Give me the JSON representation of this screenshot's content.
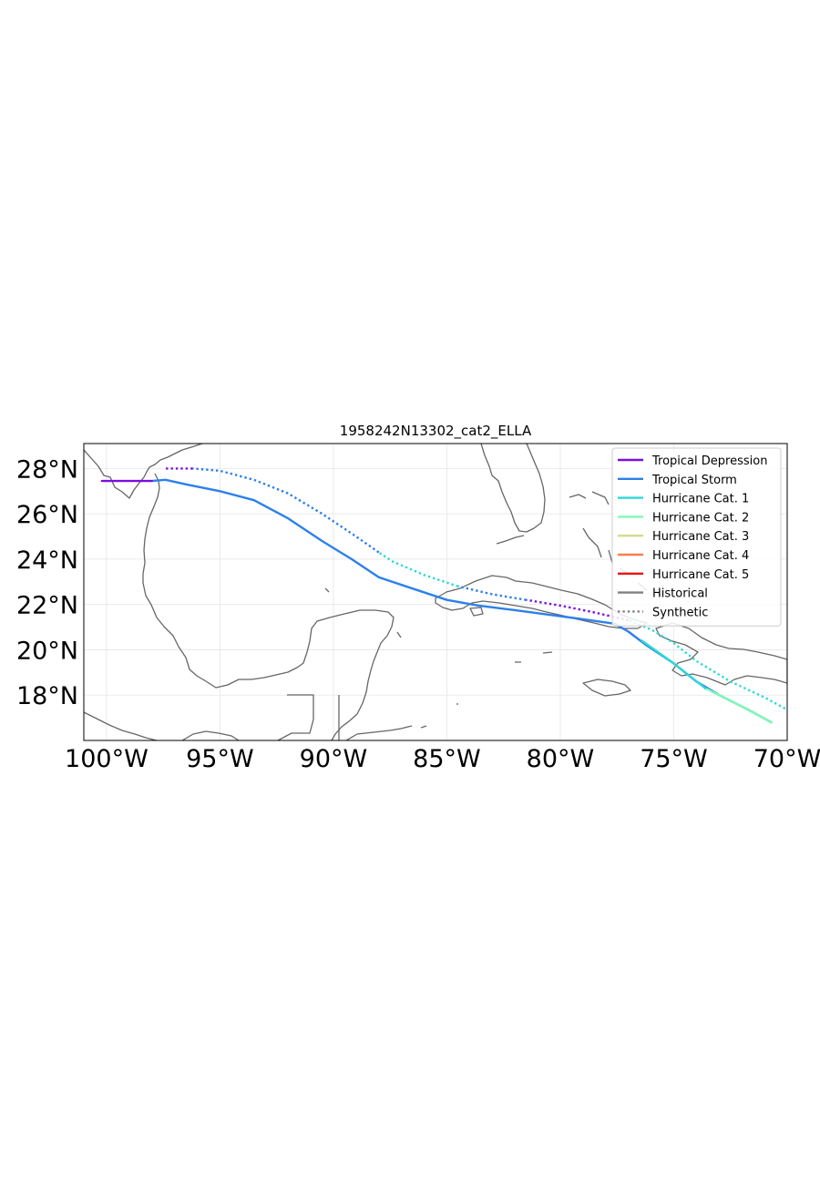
{
  "chart_data": {
    "type": "map",
    "title": "1958242N13302_cat2_ELLA",
    "xlim": [
      -101,
      -70.0
    ],
    "ylim": [
      16.0,
      29.1
    ],
    "grid": true,
    "legend_position": "top-right",
    "x_ticks": [
      {
        "value": -100,
        "label": "100°W"
      },
      {
        "value": -95,
        "label": "95°W"
      },
      {
        "value": -90,
        "label": "90°W"
      },
      {
        "value": -85,
        "label": "85°W"
      },
      {
        "value": -80,
        "label": "80°W"
      },
      {
        "value": -75,
        "label": "75°W"
      },
      {
        "value": -70,
        "label": "70°W"
      }
    ],
    "y_ticks": [
      {
        "value": 28,
        "label": "28°N"
      },
      {
        "value": 26,
        "label": "26°N"
      },
      {
        "value": 24,
        "label": "24°N"
      },
      {
        "value": 22,
        "label": "22°N"
      },
      {
        "value": 20,
        "label": "20°N"
      },
      {
        "value": 18,
        "label": "18°N"
      }
    ],
    "legend": [
      {
        "label": "Tropical Depression",
        "color": "#7a0fe0",
        "style": "solid"
      },
      {
        "label": "Tropical Storm",
        "color": "#2c80ea",
        "style": "solid"
      },
      {
        "label": "Hurricane Cat. 1",
        "color": "#2ed8d8",
        "style": "solid"
      },
      {
        "label": "Hurricane Cat. 2",
        "color": "#80f9b5",
        "style": "solid"
      },
      {
        "label": "Hurricane Cat. 3",
        "color": "#d4db8c",
        "style": "solid"
      },
      {
        "label": "Hurricane Cat. 4",
        "color": "#fb7e4b",
        "style": "solid"
      },
      {
        "label": "Hurricane Cat. 5",
        "color": "#e81515",
        "style": "solid"
      },
      {
        "label": "Historical",
        "color": "#808080",
        "style": "solid"
      },
      {
        "label": "Synthetic",
        "color": "#808080",
        "style": "dotted"
      }
    ],
    "series": [
      {
        "kind": "historical",
        "segments": [
          {
            "category": "Tropical Storm",
            "color": "#2c80ea",
            "points": [
              [
                -70.7,
                16.8
              ],
              [
                -71.8,
                17.4
              ],
              [
                -73.0,
                18.0
              ],
              [
                -74.0,
                18.6
              ],
              [
                -75.0,
                19.4
              ],
              [
                -76.2,
                20.2
              ],
              [
                -77.0,
                20.8
              ],
              [
                -77.6,
                21.15
              ]
            ]
          },
          {
            "category": "Tropical Storm",
            "color": "#2c80ea",
            "points": [
              [
                -77.6,
                21.15
              ],
              [
                -79.0,
                21.35
              ],
              [
                -80.5,
                21.55
              ],
              [
                -82.0,
                21.75
              ],
              [
                -83.6,
                21.95
              ],
              [
                -85.0,
                22.2
              ],
              [
                -86.5,
                22.7
              ],
              [
                -88.0,
                23.2
              ],
              [
                -89.2,
                24.0
              ],
              [
                -90.5,
                24.8
              ],
              [
                -92.0,
                25.8
              ],
              [
                -93.5,
                26.6
              ],
              [
                -95.0,
                27.0
              ],
              [
                -96.5,
                27.3
              ],
              [
                -97.4,
                27.5
              ],
              [
                -98.0,
                27.45
              ]
            ]
          },
          {
            "category": "Tropical Depression",
            "color": "#7a0fe0",
            "points": [
              [
                -98.0,
                27.45
              ],
              [
                -99.2,
                27.45
              ],
              [
                -100.2,
                27.45
              ]
            ]
          }
        ],
        "category_spans": [
          {
            "category": "Hurricane Cat. 2",
            "color": "#80f9b5",
            "points": [
              [
                -70.7,
                16.8
              ],
              [
                -72.0,
                17.5
              ],
              [
                -73.6,
                18.3
              ]
            ]
          },
          {
            "category": "Hurricane Cat. 1",
            "color": "#2ed8d8",
            "points": [
              [
                -73.6,
                18.3
              ],
              [
                -75.0,
                19.4
              ],
              [
                -76.4,
                20.4
              ]
            ]
          }
        ]
      },
      {
        "kind": "synthetic",
        "segments": [
          {
            "category": "Hurricane Cat. 1",
            "color": "#2ed8d8",
            "points": [
              [
                -69.9,
                17.3
              ],
              [
                -71.0,
                17.9
              ],
              [
                -72.5,
                18.6
              ],
              [
                -74.0,
                19.5
              ],
              [
                -75.0,
                20.3
              ],
              [
                -76.0,
                20.9
              ],
              [
                -77.0,
                21.3
              ]
            ]
          },
          {
            "category": "Tropical Depression",
            "color": "#7a0fe0",
            "points": [
              [
                -77.0,
                21.3
              ],
              [
                -78.5,
                21.65
              ],
              [
                -80.0,
                21.95
              ],
              [
                -81.5,
                22.2
              ]
            ]
          },
          {
            "category": "Tropical Storm",
            "color": "#2c80ea",
            "points": [
              [
                -81.5,
                22.2
              ],
              [
                -83.0,
                22.45
              ],
              [
                -84.5,
                22.8
              ]
            ]
          },
          {
            "category": "Hurricane Cat. 1",
            "color": "#2ed8d8",
            "points": [
              [
                -84.5,
                22.8
              ],
              [
                -86.0,
                23.3
              ],
              [
                -87.4,
                23.9
              ],
              [
                -88.0,
                24.3
              ]
            ]
          },
          {
            "category": "Tropical Storm",
            "color": "#2c80ea",
            "points": [
              [
                -88.0,
                24.3
              ],
              [
                -89.0,
                25.0
              ],
              [
                -90.5,
                26.0
              ],
              [
                -92.0,
                26.9
              ],
              [
                -93.5,
                27.5
              ],
              [
                -95.0,
                27.9
              ],
              [
                -96.2,
                28.0
              ]
            ]
          },
          {
            "category": "Tropical Depression",
            "color": "#7a0fe0",
            "points": [
              [
                -96.2,
                28.0
              ],
              [
                -97.5,
                28.0
              ]
            ]
          }
        ]
      }
    ]
  }
}
